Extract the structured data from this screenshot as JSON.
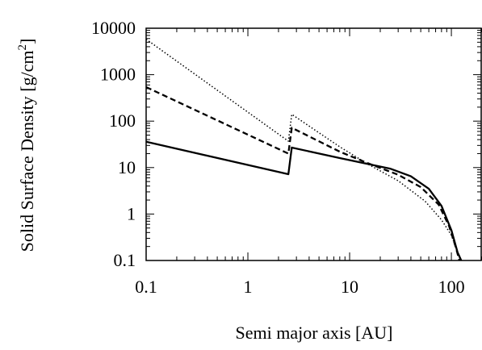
{
  "chart_data": {
    "type": "line",
    "xlabel": "Semi major axis  [AU]",
    "ylabel": "Solid Surface Density [g/cm",
    "ylabel_exponent": "2",
    "ylabel_close": "]",
    "x_scale": "log",
    "y_scale": "log",
    "xlim": [
      0.1,
      200
    ],
    "ylim": [
      0.1,
      10000
    ],
    "x_ticks": [
      0.1,
      1,
      10,
      100
    ],
    "x_tick_labels": [
      "0.1",
      "1",
      "10",
      "100"
    ],
    "y_ticks": [
      0.1,
      1,
      10,
      100,
      1000,
      10000
    ],
    "y_tick_labels": [
      "0.1",
      "1",
      "10",
      "100",
      "1000",
      "10000"
    ],
    "grid": false,
    "legend": "none",
    "series": [
      {
        "style": "solid",
        "color": "#000000",
        "points": [
          [
            0.1,
            36
          ],
          [
            2.5,
            7.2
          ],
          [
            2.7,
            27
          ],
          [
            8,
            16
          ],
          [
            15,
            12
          ],
          [
            25,
            9.5
          ],
          [
            40,
            6.5
          ],
          [
            60,
            3.5
          ],
          [
            80,
            1.5
          ],
          [
            100,
            0.45
          ],
          [
            115,
            0.15
          ],
          [
            125,
            0.1
          ]
        ]
      },
      {
        "style": "dashed",
        "color": "#000000",
        "points": [
          [
            0.1,
            540
          ],
          [
            2.5,
            20
          ],
          [
            2.7,
            72
          ],
          [
            8,
            22
          ],
          [
            15,
            12.5
          ],
          [
            30,
            7
          ],
          [
            50,
            3.8
          ],
          [
            75,
            1.6
          ],
          [
            95,
            0.55
          ],
          [
            110,
            0.2
          ],
          [
            120,
            0.1
          ]
        ]
      },
      {
        "style": "dotted",
        "color": "#000000",
        "points": [
          [
            0.1,
            5800
          ],
          [
            2.5,
            37
          ],
          [
            2.7,
            140
          ],
          [
            8,
            28
          ],
          [
            15,
            12
          ],
          [
            30,
            5.2
          ],
          [
            55,
            1.9
          ],
          [
            80,
            0.75
          ],
          [
            100,
            0.35
          ],
          [
            115,
            0.15
          ],
          [
            125,
            0.1
          ]
        ]
      }
    ]
  }
}
